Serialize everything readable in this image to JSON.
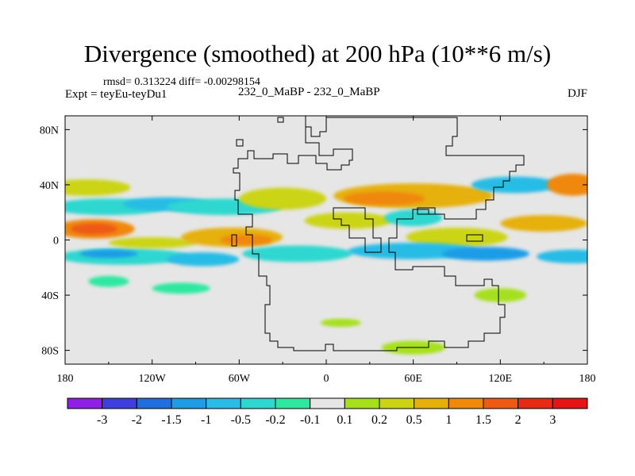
{
  "title": "Divergence (smoothed) at 200 hPa (10**6 m/s)",
  "stats": "rmsd= 0.313224 diff= -0.00298154",
  "experiment": "Expt = teyEu-teyDu1",
  "case_label": "232_0_MaBP - 232_0_MaBP",
  "season": "DJF",
  "chart_data": {
    "type": "heatmap",
    "title": "Divergence (smoothed) at 200 hPa (10**6 m/s)",
    "x_ticks": [
      {
        "value": -180,
        "label": "180"
      },
      {
        "value": -120,
        "label": "120W"
      },
      {
        "value": -60,
        "label": "60W"
      },
      {
        "value": 0,
        "label": "0"
      },
      {
        "value": 60,
        "label": "60E"
      },
      {
        "value": 120,
        "label": "120E"
      },
      {
        "value": 180,
        "label": "180"
      }
    ],
    "y_ticks": [
      {
        "value": 80,
        "label": "80N"
      },
      {
        "value": 40,
        "label": "40N"
      },
      {
        "value": 0,
        "label": "0"
      },
      {
        "value": -40,
        "label": "40S"
      },
      {
        "value": -80,
        "label": "80S"
      }
    ],
    "xlim": [
      -180,
      180
    ],
    "ylim": [
      -90,
      90
    ],
    "colorbar": {
      "labels": [
        "-3",
        "-2",
        "-1.5",
        "-1",
        "-0.5",
        "-0.2",
        "-0.1",
        "0.1",
        "0.2",
        "0.5",
        "1",
        "1.5",
        "2",
        "3"
      ],
      "colors": [
        "#8f1fe6",
        "#3f3fe0",
        "#1f6fe0",
        "#1f9ce6",
        "#28bce6",
        "#2ed7d0",
        "#2ee8a0",
        "#e6e6e6",
        "#a6e01a",
        "#ccd412",
        "#e6b00a",
        "#f0880a",
        "#ee5a14",
        "#e62a14",
        "#e61414"
      ]
    },
    "features": [
      {
        "lon": -160,
        "lat": 8,
        "w": 28,
        "h": 7,
        "level": 11
      },
      {
        "lon": -160,
        "lat": 8,
        "w": 16,
        "h": 4,
        "level": 12
      },
      {
        "lon": -165,
        "lat": 38,
        "w": 30,
        "h": 6,
        "level": 9
      },
      {
        "lon": -150,
        "lat": 24,
        "w": 40,
        "h": 6,
        "level": 5
      },
      {
        "lon": -110,
        "lat": 26,
        "w": 30,
        "h": 5,
        "level": 4
      },
      {
        "lon": -70,
        "lat": 24,
        "w": 40,
        "h": 6,
        "level": 5
      },
      {
        "lon": -140,
        "lat": -12,
        "w": 45,
        "h": 6,
        "level": 5
      },
      {
        "lon": -150,
        "lat": -10,
        "w": 20,
        "h": 3,
        "level": 3
      },
      {
        "lon": -120,
        "lat": -2,
        "w": 30,
        "h": 4,
        "level": 9
      },
      {
        "lon": -65,
        "lat": 2,
        "w": 35,
        "h": 7,
        "level": 10
      },
      {
        "lon": -55,
        "lat": 0,
        "w": 18,
        "h": 4,
        "level": 11
      },
      {
        "lon": -85,
        "lat": -14,
        "w": 25,
        "h": 5,
        "level": 4
      },
      {
        "lon": -20,
        "lat": -10,
        "w": 38,
        "h": 6,
        "level": 5
      },
      {
        "lon": -30,
        "lat": 30,
        "w": 30,
        "h": 8,
        "level": 9
      },
      {
        "lon": 60,
        "lat": 32,
        "w": 55,
        "h": 9,
        "level": 10
      },
      {
        "lon": 40,
        "lat": 30,
        "w": 28,
        "h": 5,
        "level": 11
      },
      {
        "lon": 15,
        "lat": 14,
        "w": 30,
        "h": 6,
        "level": 9
      },
      {
        "lon": 60,
        "lat": 16,
        "w": 20,
        "h": 6,
        "level": 5
      },
      {
        "lon": 90,
        "lat": 2,
        "w": 35,
        "h": 7,
        "level": 9
      },
      {
        "lon": 60,
        "lat": -8,
        "w": 45,
        "h": 6,
        "level": 4
      },
      {
        "lon": 110,
        "lat": -10,
        "w": 30,
        "h": 5,
        "level": 3
      },
      {
        "lon": 130,
        "lat": 40,
        "w": 30,
        "h": 6,
        "level": 4
      },
      {
        "lon": 170,
        "lat": 40,
        "w": 18,
        "h": 8,
        "level": 11
      },
      {
        "lon": 150,
        "lat": 12,
        "w": 30,
        "h": 6,
        "level": 10
      },
      {
        "lon": 170,
        "lat": -12,
        "w": 25,
        "h": 5,
        "level": 4
      },
      {
        "lon": 120,
        "lat": -40,
        "w": 18,
        "h": 5,
        "level": 8
      },
      {
        "lon": -150,
        "lat": -30,
        "w": 14,
        "h": 4,
        "level": 6
      },
      {
        "lon": 60,
        "lat": -78,
        "w": 22,
        "h": 5,
        "level": 8
      },
      {
        "lon": -100,
        "lat": -35,
        "w": 20,
        "h": 4,
        "level": 6
      },
      {
        "lon": 10,
        "lat": -60,
        "w": 14,
        "h": 3,
        "level": 8
      }
    ]
  }
}
